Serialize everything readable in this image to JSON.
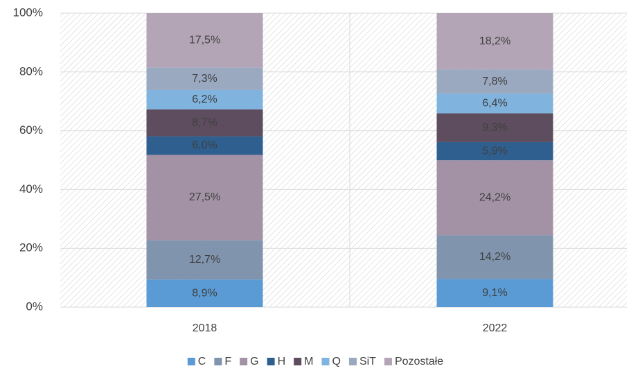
{
  "chart_data": {
    "type": "bar",
    "stacking": "percent",
    "categories": [
      "2018",
      "2022"
    ],
    "series": [
      {
        "name": "C",
        "color": "#5b9bd5",
        "values": [
          8.9,
          9.1
        ],
        "value_labels": [
          "8,9%",
          "9,1%"
        ]
      },
      {
        "name": "F",
        "color": "#8094ae",
        "values": [
          12.7,
          14.2
        ],
        "value_labels": [
          "12,7%",
          "14,2%"
        ]
      },
      {
        "name": "G",
        "color": "#a392a6",
        "values": [
          27.5,
          24.2
        ],
        "value_labels": [
          "27,5%",
          "24,2%"
        ]
      },
      {
        "name": "H",
        "color": "#2e5f8f",
        "values": [
          6.0,
          5.9
        ],
        "value_labels": [
          "6,0%",
          "5,9%"
        ]
      },
      {
        "name": "M",
        "color": "#5d4d5e",
        "values": [
          8.7,
          9.3
        ],
        "value_labels": [
          "8,7%",
          "9,3%"
        ]
      },
      {
        "name": "Q",
        "color": "#80b3dd",
        "values": [
          6.2,
          6.4
        ],
        "value_labels": [
          "6,2%",
          "6,4%"
        ]
      },
      {
        "name": "SiT",
        "color": "#9aa8c0",
        "values": [
          7.3,
          7.8
        ],
        "value_labels": [
          "7,3%",
          "7,8%"
        ]
      },
      {
        "name": "Pozostałe",
        "color": "#b3a4b6",
        "values": [
          17.5,
          18.2
        ],
        "value_labels": [
          "17,5%",
          "18,2%"
        ]
      }
    ],
    "ylim": [
      0,
      100
    ],
    "yticks": [
      {
        "value": 0,
        "label": "0%"
      },
      {
        "value": 20,
        "label": "20%"
      },
      {
        "value": 40,
        "label": "40%"
      },
      {
        "value": 60,
        "label": "60%"
      },
      {
        "value": 80,
        "label": "80%"
      },
      {
        "value": 100,
        "label": "100%"
      }
    ],
    "grid": true,
    "legend": "bottom"
  }
}
